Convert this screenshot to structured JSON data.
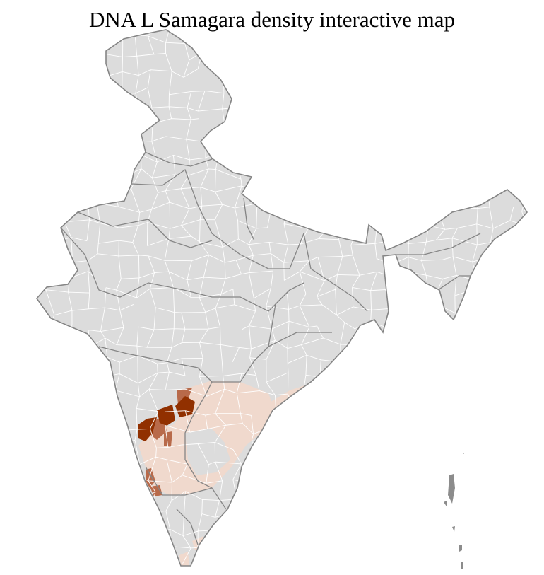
{
  "title": "DNA L Samagara density interactive map",
  "colors": {
    "background": "#ffffff",
    "no_data": "#dcdcdc",
    "district_border": "#ffffff",
    "state_border": "#858585",
    "density_low": "#f0d9cd",
    "density_medium": "#b86a4a",
    "density_high": "#913000"
  },
  "density_levels": [
    "no_data",
    "low",
    "medium",
    "high"
  ]
}
